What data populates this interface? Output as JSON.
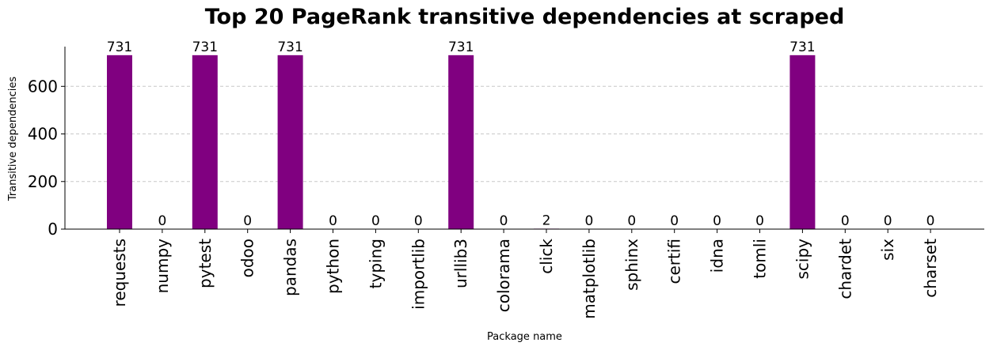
{
  "chart_data": {
    "type": "bar",
    "title": "Top 20 PageRank transitive dependencies at scraped",
    "xlabel": "Package name",
    "ylabel": "Transitive dependencies",
    "categories": [
      "requests",
      "numpy",
      "pytest",
      "odoo",
      "pandas",
      "python",
      "typing",
      "importlib",
      "urllib3",
      "colorama",
      "click",
      "matplotlib",
      "sphinx",
      "certifi",
      "idna",
      "tomli",
      "scipy",
      "chardet",
      "six",
      "charset"
    ],
    "values": [
      731,
      0,
      731,
      0,
      731,
      0,
      0,
      0,
      731,
      0,
      2,
      0,
      0,
      0,
      0,
      0,
      731,
      0,
      0,
      0
    ],
    "ylim": [
      0,
      767
    ],
    "yticks": [
      0,
      200,
      400,
      600
    ],
    "grid": "y-dashed",
    "bar_color": "#800080",
    "legend": "none"
  }
}
